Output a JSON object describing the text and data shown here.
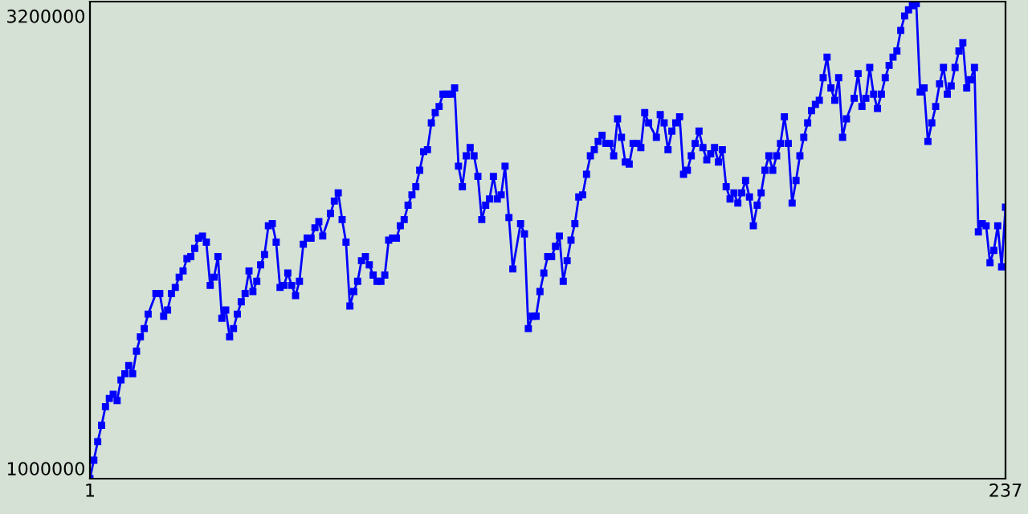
{
  "chart_data": {
    "type": "line",
    "x": [
      1,
      2,
      3,
      4,
      5,
      6,
      7,
      8,
      9,
      10,
      11,
      12,
      13,
      14,
      15,
      16,
      18,
      19,
      20,
      21,
      22,
      23,
      24,
      25,
      26,
      27,
      28,
      29,
      30,
      31,
      32,
      33,
      34,
      35,
      36,
      37,
      38,
      39,
      40,
      41,
      42,
      43,
      44,
      45,
      46,
      47,
      48,
      49,
      50,
      51,
      52,
      53,
      54,
      55,
      56,
      57,
      58,
      59,
      60,
      61,
      63,
      64,
      65,
      66,
      67,
      68,
      69,
      70,
      71,
      72,
      73,
      74,
      75,
      76,
      77,
      78,
      79,
      80,
      81,
      82,
      83,
      84,
      85,
      86,
      87,
      88,
      89,
      90,
      91,
      92,
      93,
      94,
      95,
      96,
      97,
      98,
      99,
      100,
      101,
      102,
      103,
      104,
      105,
      106,
      107,
      108,
      109,
      110,
      112,
      113,
      114,
      115,
      116,
      117,
      118,
      119,
      120,
      121,
      122,
      123,
      124,
      125,
      126,
      127,
      128,
      129,
      130,
      131,
      132,
      133,
      134,
      135,
      136,
      137,
      138,
      139,
      140,
      141,
      142,
      143,
      144,
      145,
      147,
      148,
      149,
      150,
      151,
      152,
      153,
      154,
      155,
      156,
      157,
      158,
      159,
      160,
      161,
      162,
      163,
      164,
      165,
      166,
      167,
      168,
      169,
      170,
      171,
      172,
      173,
      174,
      175,
      176,
      177,
      178,
      179,
      180,
      181,
      182,
      183,
      184,
      185,
      186,
      187,
      188,
      189,
      190,
      191,
      192,
      193,
      194,
      195,
      196,
      198,
      199,
      200,
      201,
      202,
      203,
      204,
      205,
      206,
      207,
      208,
      209,
      210,
      211,
      212,
      213,
      214,
      215,
      216,
      217,
      218,
      219,
      220,
      221,
      222,
      223,
      224,
      225,
      226,
      227,
      228,
      229,
      230,
      231,
      232,
      233,
      234,
      235,
      236,
      237
    ],
    "series": [
      {
        "color": "#0000ff",
        "values": [
          950000,
          1040000,
          1130000,
          1210000,
          1300000,
          1340000,
          1360000,
          1330000,
          1430000,
          1460000,
          1500000,
          1460000,
          1570000,
          1640000,
          1680000,
          1750000,
          1850000,
          1850000,
          1740000,
          1770000,
          1850000,
          1880000,
          1930000,
          1960000,
          2020000,
          2030000,
          2070000,
          2120000,
          2130000,
          2100000,
          1890000,
          1930000,
          2030000,
          1730000,
          1770000,
          1640000,
          1680000,
          1750000,
          1810000,
          1850000,
          1960000,
          1860000,
          1910000,
          1990000,
          2040000,
          2180000,
          2190000,
          2100000,
          1880000,
          1890000,
          1950000,
          1890000,
          1840000,
          1910000,
          2090000,
          2120000,
          2120000,
          2170000,
          2200000,
          2130000,
          2240000,
          2300000,
          2340000,
          2210000,
          2100000,
          1790000,
          1860000,
          1910000,
          2010000,
          2030000,
          1990000,
          1940000,
          1910000,
          1910000,
          1940000,
          2110000,
          2120000,
          2120000,
          2180000,
          2210000,
          2280000,
          2330000,
          2370000,
          2450000,
          2540000,
          2550000,
          2680000,
          2730000,
          2760000,
          2820000,
          2820000,
          2820000,
          2850000,
          2470000,
          2370000,
          2520000,
          2560000,
          2520000,
          2420000,
          2210000,
          2280000,
          2310000,
          2420000,
          2310000,
          2330000,
          2470000,
          2220000,
          1970000,
          2190000,
          2140000,
          1680000,
          1740000,
          1740000,
          1860000,
          1950000,
          2030000,
          2030000,
          2080000,
          2130000,
          1910000,
          2010000,
          2110000,
          2190000,
          2320000,
          2330000,
          2430000,
          2520000,
          2550000,
          2590000,
          2620000,
          2580000,
          2580000,
          2520000,
          2700000,
          2610000,
          2490000,
          2480000,
          2580000,
          2580000,
          2560000,
          2730000,
          2680000,
          2610000,
          2720000,
          2680000,
          2550000,
          2640000,
          2680000,
          2710000,
          2430000,
          2450000,
          2520000,
          2580000,
          2640000,
          2560000,
          2500000,
          2530000,
          2560000,
          2490000,
          2550000,
          2370000,
          2310000,
          2340000,
          2290000,
          2340000,
          2400000,
          2320000,
          2180000,
          2280000,
          2340000,
          2450000,
          2520000,
          2450000,
          2520000,
          2580000,
          2710000,
          2580000,
          2290000,
          2400000,
          2520000,
          2610000,
          2680000,
          2740000,
          2770000,
          2790000,
          2900000,
          3000000,
          2850000,
          2790000,
          2900000,
          2610000,
          2700000,
          2800000,
          2920000,
          2760000,
          2800000,
          2950000,
          2820000,
          2750000,
          2820000,
          2900000,
          2960000,
          3000000,
          3030000,
          3130000,
          3200000,
          3230000,
          3250000,
          3260000,
          2830000,
          2850000,
          2590000,
          2680000,
          2760000,
          2870000,
          2950000,
          2820000,
          2860000,
          2950000,
          3030000,
          3070000,
          2850000,
          2890000,
          2950000,
          2150000,
          2190000,
          2180000,
          2000000,
          2060000,
          2180000,
          1980000,
          2270000
        ]
      }
    ],
    "xlim": [
      1,
      237
    ],
    "xticks": [
      1,
      237
    ],
    "ylim": [
      950000,
      3270000
    ],
    "yticks": [
      1000000,
      3200000
    ],
    "marker": "square",
    "line_style": "solid"
  }
}
